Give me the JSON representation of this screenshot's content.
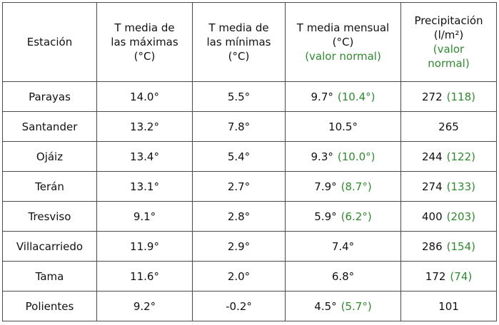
{
  "headers": {
    "station": "Estación",
    "tmax_l1": "T media de",
    "tmax_l2": "las máximas",
    "tmax_l3": "(°C)",
    "tmin_l1": "T media de",
    "tmin_l2": "las mínimas",
    "tmin_l3": "(°C)",
    "tmean_l1": "T media mensual",
    "tmean_l2": "(°C)",
    "tmean_normal": "(valor normal)",
    "precip_l1": "Precipitación",
    "precip_l2": "(l/m²)",
    "precip_normal_l1": "(valor",
    "precip_normal_l2": "normal)"
  },
  "rows": [
    {
      "station": "Parayas",
      "tmax": "14.0°",
      "tmin": "5.5°",
      "tmean": "9.7°",
      "tmean_normal": "(10.4°)",
      "precip": "272",
      "precip_normal": "(118)"
    },
    {
      "station": "Santander",
      "tmax": "13.2°",
      "tmin": "7.8°",
      "tmean": "10.5°",
      "tmean_normal": "",
      "precip": "265",
      "precip_normal": ""
    },
    {
      "station": "Ojáiz",
      "tmax": "13.4°",
      "tmin": "5.4°",
      "tmean": "9.3°",
      "tmean_normal": "(10.0°)",
      "precip": "244",
      "precip_normal": "(122)"
    },
    {
      "station": "Terán",
      "tmax": "13.1°",
      "tmin": "2.7°",
      "tmean": "7.9°",
      "tmean_normal": "(8.7°)",
      "precip": "274",
      "precip_normal": "(133)"
    },
    {
      "station": "Tresviso",
      "tmax": "9.1°",
      "tmin": "2.8°",
      "tmean": "5.9°",
      "tmean_normal": "(6.2°)",
      "precip": "400",
      "precip_normal": "(203)"
    },
    {
      "station": "Villacarriedo",
      "tmax": "11.9°",
      "tmin": "2.9°",
      "tmean": "7.4°",
      "tmean_normal": "",
      "precip": "286",
      "precip_normal": "(154)"
    },
    {
      "station": "Tama",
      "tmax": "11.6°",
      "tmin": "2.0°",
      "tmean": "6.8°",
      "tmean_normal": "",
      "precip": "172",
      "precip_normal": "(74)"
    },
    {
      "station": "Polientes",
      "tmax": "9.2°",
      "tmin": "-0.2°",
      "tmean": "4.5°",
      "tmean_normal": "(5.7°)",
      "precip": "101",
      "precip_normal": ""
    }
  ],
  "colors": {
    "normal_value": "#2e8b2e",
    "border": "#4a4a4a"
  }
}
